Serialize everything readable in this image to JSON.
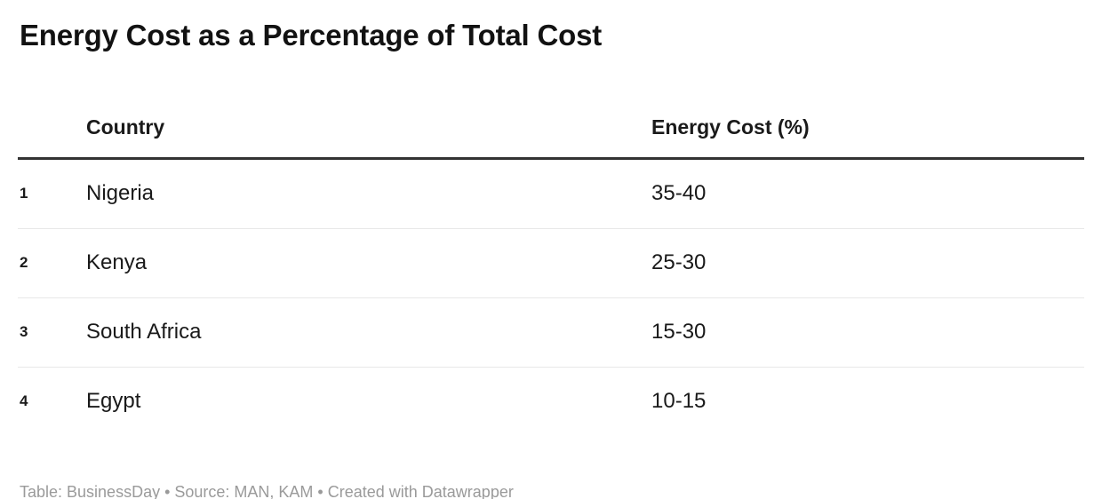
{
  "header": {
    "title": "Energy Cost as a Percentage of Total Cost"
  },
  "table": {
    "rank_header": "",
    "columns": [
      {
        "label": "Country"
      },
      {
        "label": "Energy Cost (%)"
      }
    ],
    "rows": [
      {
        "rank": "1",
        "country": "Nigeria",
        "energy_cost": "35-40"
      },
      {
        "rank": "2",
        "country": "Kenya",
        "energy_cost": "25-30"
      },
      {
        "rank": "3",
        "country": "South Africa",
        "energy_cost": "15-30"
      },
      {
        "rank": "4",
        "country": "Egypt",
        "energy_cost": "10-15"
      }
    ]
  },
  "footer": {
    "text": "Table: BusinessDay • Source: MAN, KAM • Created with Datawrapper"
  },
  "colors": {
    "background": "#ffffff",
    "title_text": "#121212",
    "body_text": "#1a1a1a",
    "header_rule": "#333333",
    "row_divider": "#e8e8e8",
    "footer_text": "#9a9a9a"
  },
  "chart_data": {
    "type": "table",
    "title": "Energy Cost as a Percentage of Total Cost",
    "columns": [
      "Country",
      "Energy Cost (%)"
    ],
    "rows": [
      [
        "Nigeria",
        "35-40"
      ],
      [
        "Kenya",
        "25-30"
      ],
      [
        "South Africa",
        "15-30"
      ],
      [
        "Egypt",
        "10-15"
      ]
    ],
    "notes": "Table: BusinessDay • Source: MAN, KAM • Created with Datawrapper"
  }
}
